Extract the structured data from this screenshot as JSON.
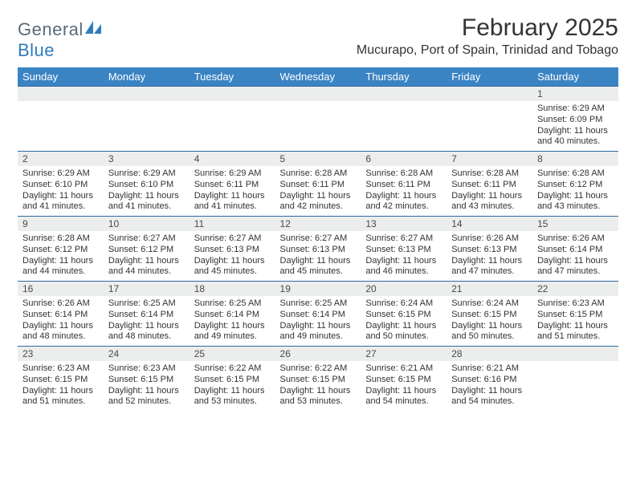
{
  "brand": {
    "word1": "General",
    "word2": "Blue"
  },
  "title": "February 2025",
  "subtitle": "Mucurapo, Port of Spain, Trinidad and Tobago",
  "colors": {
    "header_bg": "#3b84c4",
    "header_text": "#ffffff",
    "row_rule": "#2f6aa0",
    "daynum_bg": "#eceded",
    "text": "#333333",
    "logo_gray": "#5a6a78",
    "logo_blue": "#2f7bbf"
  },
  "weekdays": [
    "Sunday",
    "Monday",
    "Tuesday",
    "Wednesday",
    "Thursday",
    "Friday",
    "Saturday"
  ],
  "weeks": [
    [
      {
        "n": "",
        "lines": []
      },
      {
        "n": "",
        "lines": []
      },
      {
        "n": "",
        "lines": []
      },
      {
        "n": "",
        "lines": []
      },
      {
        "n": "",
        "lines": []
      },
      {
        "n": "",
        "lines": []
      },
      {
        "n": "1",
        "lines": [
          "Sunrise: 6:29 AM",
          "Sunset: 6:09 PM",
          "Daylight: 11 hours and 40 minutes."
        ]
      }
    ],
    [
      {
        "n": "2",
        "lines": [
          "Sunrise: 6:29 AM",
          "Sunset: 6:10 PM",
          "Daylight: 11 hours and 41 minutes."
        ]
      },
      {
        "n": "3",
        "lines": [
          "Sunrise: 6:29 AM",
          "Sunset: 6:10 PM",
          "Daylight: 11 hours and 41 minutes."
        ]
      },
      {
        "n": "4",
        "lines": [
          "Sunrise: 6:29 AM",
          "Sunset: 6:11 PM",
          "Daylight: 11 hours and 41 minutes."
        ]
      },
      {
        "n": "5",
        "lines": [
          "Sunrise: 6:28 AM",
          "Sunset: 6:11 PM",
          "Daylight: 11 hours and 42 minutes."
        ]
      },
      {
        "n": "6",
        "lines": [
          "Sunrise: 6:28 AM",
          "Sunset: 6:11 PM",
          "Daylight: 11 hours and 42 minutes."
        ]
      },
      {
        "n": "7",
        "lines": [
          "Sunrise: 6:28 AM",
          "Sunset: 6:11 PM",
          "Daylight: 11 hours and 43 minutes."
        ]
      },
      {
        "n": "8",
        "lines": [
          "Sunrise: 6:28 AM",
          "Sunset: 6:12 PM",
          "Daylight: 11 hours and 43 minutes."
        ]
      }
    ],
    [
      {
        "n": "9",
        "lines": [
          "Sunrise: 6:28 AM",
          "Sunset: 6:12 PM",
          "Daylight: 11 hours and 44 minutes."
        ]
      },
      {
        "n": "10",
        "lines": [
          "Sunrise: 6:27 AM",
          "Sunset: 6:12 PM",
          "Daylight: 11 hours and 44 minutes."
        ]
      },
      {
        "n": "11",
        "lines": [
          "Sunrise: 6:27 AM",
          "Sunset: 6:13 PM",
          "Daylight: 11 hours and 45 minutes."
        ]
      },
      {
        "n": "12",
        "lines": [
          "Sunrise: 6:27 AM",
          "Sunset: 6:13 PM",
          "Daylight: 11 hours and 45 minutes."
        ]
      },
      {
        "n": "13",
        "lines": [
          "Sunrise: 6:27 AM",
          "Sunset: 6:13 PM",
          "Daylight: 11 hours and 46 minutes."
        ]
      },
      {
        "n": "14",
        "lines": [
          "Sunrise: 6:26 AM",
          "Sunset: 6:13 PM",
          "Daylight: 11 hours and 47 minutes."
        ]
      },
      {
        "n": "15",
        "lines": [
          "Sunrise: 6:26 AM",
          "Sunset: 6:14 PM",
          "Daylight: 11 hours and 47 minutes."
        ]
      }
    ],
    [
      {
        "n": "16",
        "lines": [
          "Sunrise: 6:26 AM",
          "Sunset: 6:14 PM",
          "Daylight: 11 hours and 48 minutes."
        ]
      },
      {
        "n": "17",
        "lines": [
          "Sunrise: 6:25 AM",
          "Sunset: 6:14 PM",
          "Daylight: 11 hours and 48 minutes."
        ]
      },
      {
        "n": "18",
        "lines": [
          "Sunrise: 6:25 AM",
          "Sunset: 6:14 PM",
          "Daylight: 11 hours and 49 minutes."
        ]
      },
      {
        "n": "19",
        "lines": [
          "Sunrise: 6:25 AM",
          "Sunset: 6:14 PM",
          "Daylight: 11 hours and 49 minutes."
        ]
      },
      {
        "n": "20",
        "lines": [
          "Sunrise: 6:24 AM",
          "Sunset: 6:15 PM",
          "Daylight: 11 hours and 50 minutes."
        ]
      },
      {
        "n": "21",
        "lines": [
          "Sunrise: 6:24 AM",
          "Sunset: 6:15 PM",
          "Daylight: 11 hours and 50 minutes."
        ]
      },
      {
        "n": "22",
        "lines": [
          "Sunrise: 6:23 AM",
          "Sunset: 6:15 PM",
          "Daylight: 11 hours and 51 minutes."
        ]
      }
    ],
    [
      {
        "n": "23",
        "lines": [
          "Sunrise: 6:23 AM",
          "Sunset: 6:15 PM",
          "Daylight: 11 hours and 51 minutes."
        ]
      },
      {
        "n": "24",
        "lines": [
          "Sunrise: 6:23 AM",
          "Sunset: 6:15 PM",
          "Daylight: 11 hours and 52 minutes."
        ]
      },
      {
        "n": "25",
        "lines": [
          "Sunrise: 6:22 AM",
          "Sunset: 6:15 PM",
          "Daylight: 11 hours and 53 minutes."
        ]
      },
      {
        "n": "26",
        "lines": [
          "Sunrise: 6:22 AM",
          "Sunset: 6:15 PM",
          "Daylight: 11 hours and 53 minutes."
        ]
      },
      {
        "n": "27",
        "lines": [
          "Sunrise: 6:21 AM",
          "Sunset: 6:15 PM",
          "Daylight: 11 hours and 54 minutes."
        ]
      },
      {
        "n": "28",
        "lines": [
          "Sunrise: 6:21 AM",
          "Sunset: 6:16 PM",
          "Daylight: 11 hours and 54 minutes."
        ]
      },
      {
        "n": "",
        "lines": []
      }
    ]
  ]
}
